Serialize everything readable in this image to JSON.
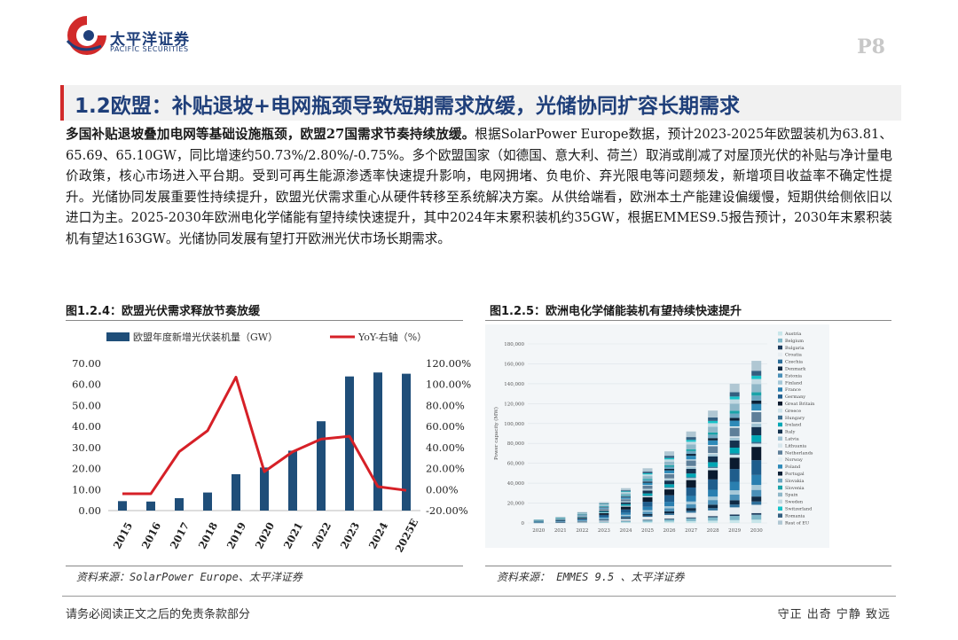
{
  "header": {
    "logo_cn": "太平洋证券",
    "logo_en": "PACIFIC SECURITIES",
    "page_number": "P8"
  },
  "section_title": "1.2欧盟：补贴退坡+电网瓶颈导致短期需求放缓，光储协同扩容长期需求",
  "body": {
    "lead": "多国补贴退坡叠加电网等基础设施瓶颈，欧盟27国需求节奏持续放缓。",
    "rest": "根据SolarPower Europe数据，预计2023-2025年欧盟装机为63.81、65.69、65.10GW，同比增速约50.73%/2.80%/-0.75%。多个欧盟国家（如德国、意大利、荷兰）取消或削减了对屋顶光伏的补贴与净计量电价政策，核心市场进入平台期。受到可再生能源渗透率快速提升影响，电网拥堵、负电价、弃光限电等问题频发，新增项目收益率不确定性提升。光储协同发展重要性持续提升，欧盟光伏需求重心从硬件转移至系统解决方案。从供给端看，欧洲本土产能建设偏缓慢，短期供给侧依旧以进口为主。2025-2030年欧洲电化学储能有望持续快速提升，其中2024年末累积装机约35GW，根据EMMES9.5报告预计，2030年末累积装机有望达163GW。光储协同发展有望打开欧洲光伏市场长期需求。"
  },
  "figure_left": {
    "title": "图1.2.4：欧盟光伏需求释放节奏放缓",
    "source": "资料来源：SolarPower Europe、太平洋证券"
  },
  "figure_right": {
    "title": "图1.2.5：欧洲电化学储能装机有望持续快速提升",
    "source": "资料来源： EMMES 9.5 、太平洋证券"
  },
  "footer": {
    "disclaimer": "请务必阅读正文之后的免责条款部分",
    "motto": "守正 出奇 宁静 致远"
  },
  "colors": {
    "bar": "#1f4e79",
    "line": "#d62027",
    "accent": "#d12a2a",
    "navy": "#1f3f7a"
  },
  "chart_data": [
    {
      "type": "bar",
      "title": "图1.2.4：欧盟光伏需求释放节奏放缓",
      "categories": [
        "2015",
        "2016",
        "2017",
        "2018",
        "2019",
        "2020",
        "2021",
        "2022",
        "2023",
        "2024",
        "2025E"
      ],
      "series": [
        {
          "name": "欧盟年度新增光伏装机量（GW）",
          "axis": "left",
          "kind": "bar",
          "values": [
            4.5,
            4.3,
            5.9,
            8.6,
            17.3,
            20.5,
            28.5,
            42.5,
            63.81,
            65.69,
            65.1
          ]
        },
        {
          "name": "YoY-右轴（%）",
          "axis": "right",
          "kind": "line",
          "values": [
            -4,
            -4,
            36,
            56,
            107,
            17,
            36,
            48,
            50.73,
            2.8,
            -0.75
          ]
        }
      ],
      "y_left": {
        "min": 0,
        "max": 70,
        "ticks": [
          "0.00",
          "10.00",
          "20.00",
          "30.00",
          "40.00",
          "50.00",
          "60.00",
          "70.00"
        ]
      },
      "y_right": {
        "min": -20,
        "max": 120,
        "ticks": [
          "-20.00%",
          "0.00%",
          "20.00%",
          "40.00%",
          "60.00%",
          "80.00%",
          "100.00%",
          "120.00%"
        ]
      },
      "legend": "top"
    },
    {
      "type": "bar",
      "stacked": true,
      "title": "图1.2.5：欧洲电化学储能装机有望持续快速提升",
      "ylabel": "Power capacity (MW)",
      "categories": [
        "2020",
        "2021",
        "2022",
        "2023",
        "2024",
        "2025",
        "2026",
        "2027",
        "2028",
        "2029",
        "2030"
      ],
      "totals": [
        3500,
        6000,
        11000,
        21000,
        35000,
        55000,
        72000,
        92000,
        113000,
        140000,
        163000
      ],
      "ylim": [
        0,
        180000
      ],
      "y_ticks": [
        "0",
        "20,000",
        "40,000",
        "60,000",
        "80,000",
        "100,000",
        "120,000",
        "140,000",
        "160,000",
        "180,000"
      ],
      "legend_position": "right",
      "legend": [
        {
          "name": "Austria",
          "color": "#c8e6ea"
        },
        {
          "name": "Belgium",
          "color": "#7fb8c9"
        },
        {
          "name": "Bulgaria",
          "color": "#1b3a5c"
        },
        {
          "name": "Croatia",
          "color": "#e8eef2"
        },
        {
          "name": "Czechia",
          "color": "#2d6f9a"
        },
        {
          "name": "Denmark",
          "color": "#0f2a44"
        },
        {
          "name": "Estonia",
          "color": "#4a90b8"
        },
        {
          "name": "Finland",
          "color": "#a6c8d8"
        },
        {
          "name": "France",
          "color": "#2a7fb0"
        },
        {
          "name": "Germany",
          "color": "#1f5d8c"
        },
        {
          "name": "Great Britain",
          "color": "#0a1a2e"
        },
        {
          "name": "Greece",
          "color": "#cfe3ea"
        },
        {
          "name": "Hungary",
          "color": "#3c6e8f"
        },
        {
          "name": "Ireland",
          "color": "#00a7b5"
        },
        {
          "name": "Italy",
          "color": "#14324f"
        },
        {
          "name": "Latvia",
          "color": "#9fc3d3"
        },
        {
          "name": "Lithuania",
          "color": "#d7e6ec"
        },
        {
          "name": "Netherlands",
          "color": "#5e7f99"
        },
        {
          "name": "Norway",
          "color": "#e2eef2"
        },
        {
          "name": "Poland",
          "color": "#2e8ab8"
        },
        {
          "name": "Portugal",
          "color": "#0c2238"
        },
        {
          "name": "Slovakia",
          "color": "#6aa6c0"
        },
        {
          "name": "Slovenia",
          "color": "#1aa3a8"
        },
        {
          "name": "Spain",
          "color": "#8fb7c8"
        },
        {
          "name": "Sweden",
          "color": "#c2d9e2"
        },
        {
          "name": "Switzerland",
          "color": "#17c3c9"
        },
        {
          "name": "Romania",
          "color": "#335f80"
        },
        {
          "name": "Rest of EU",
          "color": "#b0c7d3"
        }
      ]
    }
  ]
}
